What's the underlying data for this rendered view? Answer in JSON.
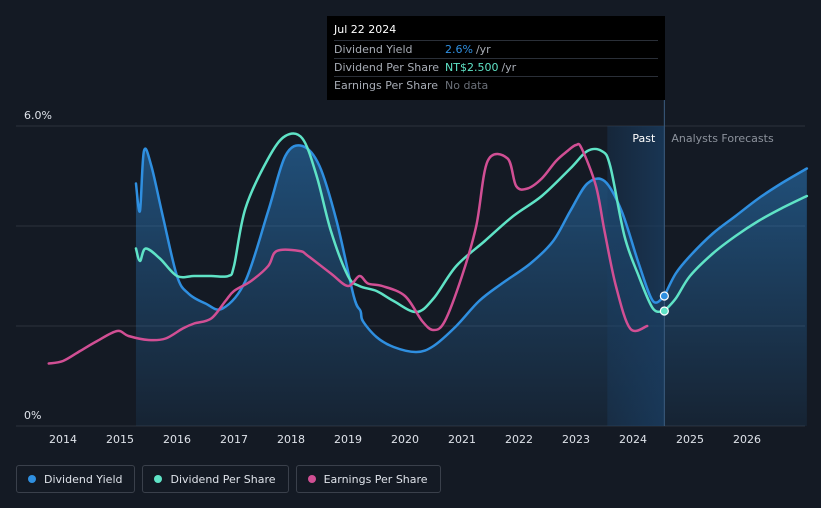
{
  "tooltip": {
    "date": "Jul 22 2024",
    "rows": [
      {
        "label": "Dividend Yield",
        "value": "2.6%",
        "unit": "/yr",
        "color": "#2f8fe0"
      },
      {
        "label": "Dividend Per Share",
        "value": "NT$2.500",
        "unit": "/yr",
        "color": "#5fe3c6"
      },
      {
        "label": "Earnings Per Share",
        "value": "No data",
        "unit": "",
        "color": "#6b7079"
      }
    ]
  },
  "regions": {
    "past_label": "Past",
    "forecast_label": "Analysts Forecasts"
  },
  "legend": [
    {
      "label": "Dividend Yield",
      "color": "#2f8fe0"
    },
    {
      "label": "Dividend Per Share",
      "color": "#5fe3c6"
    },
    {
      "label": "Earnings Per Share",
      "color": "#d14f94"
    }
  ],
  "chart_data": {
    "type": "line",
    "title": "",
    "xlabel": "",
    "ylabel": "",
    "y_tick_labels": [
      "6.0%",
      "0%"
    ],
    "x_tick_labels": [
      "2014",
      "2015",
      "2016",
      "2017",
      "2018",
      "2019",
      "2020",
      "2021",
      "2022",
      "2023",
      "2024",
      "2025",
      "2026"
    ],
    "x_range": [
      2013.6,
      2027.05
    ],
    "ylim": [
      0,
      6
    ],
    "past_forecast_split": 2024.55,
    "highlight_start": 2023.55,
    "grid": true,
    "legend_position": "bottom-left",
    "series": [
      {
        "name": "Dividend Yield",
        "color": "#2f8fe0",
        "filled": true,
        "x": [
          2015.28,
          2015.35,
          2015.42,
          2015.55,
          2015.75,
          2016.0,
          2016.2,
          2016.5,
          2016.8,
          2017.2,
          2017.6,
          2017.9,
          2018.2,
          2018.5,
          2018.8,
          2019.1,
          2019.22,
          2019.26,
          2019.5,
          2019.8,
          2020.2,
          2020.5,
          2020.9,
          2021.3,
          2021.7,
          2022.2,
          2022.6,
          2022.9,
          2023.2,
          2023.5,
          2023.8,
          2024.1,
          2024.35,
          2024.55
        ],
        "y": [
          4.85,
          4.3,
          5.5,
          5.2,
          4.2,
          3.0,
          2.65,
          2.45,
          2.35,
          2.9,
          4.3,
          5.4,
          5.6,
          5.2,
          4.1,
          2.6,
          2.3,
          2.1,
          1.78,
          1.58,
          1.48,
          1.6,
          2.0,
          2.5,
          2.85,
          3.25,
          3.7,
          4.3,
          4.85,
          4.9,
          4.3,
          3.25,
          2.5,
          2.6
        ]
      },
      {
        "name": "Dividend Per Share",
        "color": "#5fe3c6",
        "filled": false,
        "x": [
          2015.28,
          2015.35,
          2015.45,
          2015.7,
          2016.0,
          2016.3,
          2016.6,
          2016.9,
          2017.0,
          2017.2,
          2017.6,
          2017.9,
          2018.2,
          2018.45,
          2018.7,
          2019.0,
          2019.2,
          2019.5,
          2019.8,
          2020.2,
          2020.5,
          2020.9,
          2021.4,
          2021.9,
          2022.4,
          2022.9,
          2023.2,
          2023.45,
          2023.6,
          2023.85,
          2024.1,
          2024.35,
          2024.55
        ],
        "y": [
          3.55,
          3.3,
          3.55,
          3.35,
          3.0,
          3.0,
          3.0,
          3.0,
          3.2,
          4.35,
          5.35,
          5.8,
          5.75,
          5.0,
          3.9,
          3.0,
          2.8,
          2.7,
          2.5,
          2.28,
          2.55,
          3.2,
          3.7,
          4.2,
          4.6,
          5.15,
          5.5,
          5.5,
          5.2,
          3.8,
          3.0,
          2.35,
          2.3
        ]
      },
      {
        "name": "Earnings Per Share",
        "color": "#d14f94",
        "filled": false,
        "x": [
          2013.75,
          2014.0,
          2014.3,
          2014.6,
          2014.95,
          2015.15,
          2015.5,
          2015.8,
          2016.1,
          2016.3,
          2016.6,
          2016.85,
          2017.0,
          2017.3,
          2017.6,
          2017.75,
          2018.15,
          2018.3,
          2018.7,
          2019.0,
          2019.2,
          2019.35,
          2019.6,
          2020.0,
          2020.3,
          2020.5,
          2020.7,
          2021.0,
          2021.25,
          2021.45,
          2021.8,
          2021.95,
          2022.15,
          2022.4,
          2022.65,
          2022.85,
          2023.0,
          2023.1,
          2023.35,
          2023.5,
          2023.7,
          2023.95,
          2024.25
        ],
        "y": [
          1.25,
          1.3,
          1.5,
          1.7,
          1.9,
          1.8,
          1.72,
          1.75,
          1.95,
          2.05,
          2.15,
          2.5,
          2.7,
          2.9,
          3.2,
          3.5,
          3.5,
          3.4,
          3.05,
          2.8,
          3.0,
          2.85,
          2.8,
          2.6,
          2.1,
          1.92,
          2.1,
          3.0,
          4.0,
          5.3,
          5.35,
          4.8,
          4.75,
          4.95,
          5.3,
          5.5,
          5.62,
          5.55,
          4.8,
          3.9,
          2.8,
          1.95,
          2.0
        ]
      },
      {
        "name": "Dividend Yield",
        "color": "#2f8fe0",
        "filled": true,
        "forecast": true,
        "x": [
          2024.55,
          2024.75,
          2025.0,
          2025.4,
          2025.8,
          2026.2,
          2026.6,
          2027.05
        ],
        "y": [
          2.6,
          3.05,
          3.4,
          3.85,
          4.2,
          4.55,
          4.85,
          5.15
        ]
      },
      {
        "name": "Dividend Per Share",
        "color": "#5fe3c6",
        "filled": false,
        "forecast": true,
        "x": [
          2024.55,
          2024.75,
          2025.0,
          2025.4,
          2025.8,
          2026.2,
          2026.6,
          2027.05
        ],
        "y": [
          2.3,
          2.55,
          3.0,
          3.45,
          3.8,
          4.1,
          4.35,
          4.6
        ]
      }
    ]
  }
}
